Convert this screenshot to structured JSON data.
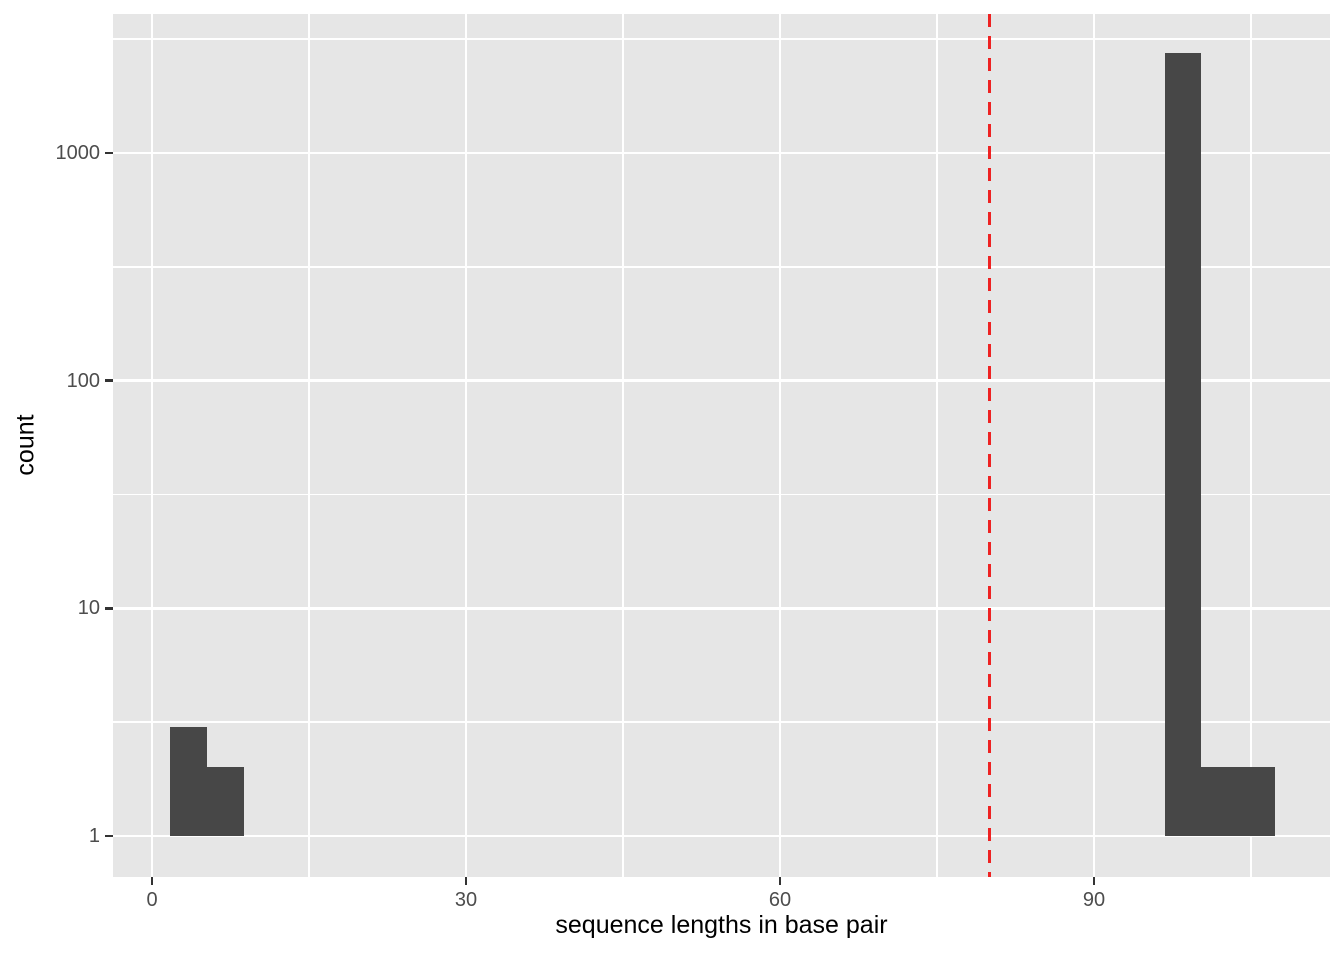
{
  "chart_data": {
    "type": "bar",
    "subtype": "histogram",
    "title": "",
    "xlabel": "sequence lengths in base pair",
    "ylabel": "count",
    "x_axis": {
      "scale": "linear",
      "ticks": [
        0,
        30,
        60,
        90
      ],
      "minor_ticks": [
        15,
        45,
        75,
        105
      ],
      "range": [
        -3.7,
        112.5
      ]
    },
    "y_axis": {
      "scale": "log10",
      "ticks": [
        1,
        10,
        100,
        1000
      ],
      "minor_ticks": [
        3.1623,
        31.623,
        316.23,
        3162.3
      ],
      "range": [
        0.66,
        4080
      ]
    },
    "bins": [
      {
        "from": 1.75,
        "to": 5.25,
        "count": 3
      },
      {
        "from": 5.25,
        "to": 8.75,
        "count": 2
      },
      {
        "from": 96.75,
        "to": 100.25,
        "count": 2750
      },
      {
        "from": 100.25,
        "to": 103.75,
        "count": 2
      },
      {
        "from": 103.75,
        "to": 107.25,
        "count": 2
      }
    ],
    "bar_baseline_count": 1,
    "vline": {
      "x": 80,
      "style": "dashed",
      "color": "#ee2222"
    },
    "colors": {
      "bar": "#474747",
      "panel_bg": "#e6e6e6",
      "grid": "#ffffff",
      "tick_mark": "#333333",
      "tick_label": "#4d4d4d",
      "axis_title": "#000000",
      "background": "#ffffff"
    }
  }
}
